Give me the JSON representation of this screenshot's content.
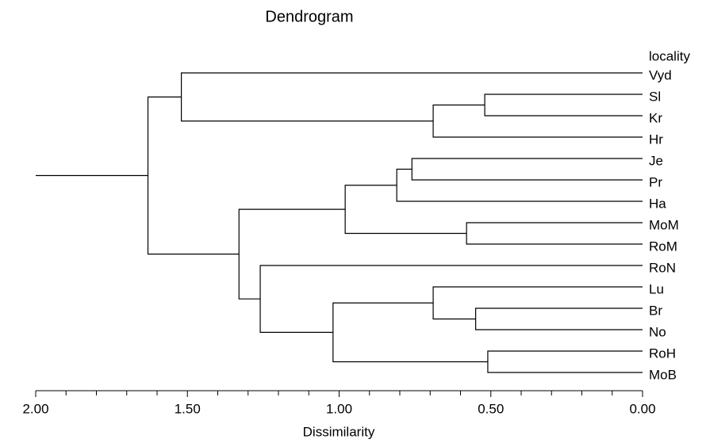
{
  "chart_data": {
    "type": "dendrogram",
    "title": "Dendrogram",
    "xlabel": "Dissimilarity",
    "leaf_header": "locality",
    "labels": [
      "Vyd",
      "Sl",
      "Kr",
      "Hr",
      "Je",
      "Pr",
      "Ha",
      "MoM",
      "RoM",
      "RoN",
      "Lu",
      "Br",
      "No",
      "RoH",
      "MoB"
    ],
    "merges": [
      {
        "children": [
          1,
          2
        ],
        "height": 0.52
      },
      {
        "children": [
          15,
          3
        ],
        "height": 0.69
      },
      {
        "children": [
          0,
          16
        ],
        "height": 1.52
      },
      {
        "children": [
          4,
          5
        ],
        "height": 0.76
      },
      {
        "children": [
          18,
          6
        ],
        "height": 0.81
      },
      {
        "children": [
          7,
          8
        ],
        "height": 0.58
      },
      {
        "children": [
          19,
          20
        ],
        "height": 0.98
      },
      {
        "children": [
          11,
          12
        ],
        "height": 0.55
      },
      {
        "children": [
          10,
          22
        ],
        "height": 0.69
      },
      {
        "children": [
          13,
          14
        ],
        "height": 0.51
      },
      {
        "children": [
          23,
          24
        ],
        "height": 1.02
      },
      {
        "children": [
          9,
          25
        ],
        "height": 1.26
      },
      {
        "children": [
          21,
          26
        ],
        "height": 1.33
      },
      {
        "children": [
          17,
          27
        ],
        "height": 1.63
      }
    ],
    "xlim": [
      2,
      0
    ],
    "xticks": [
      {
        "value": 2,
        "label": "2.00"
      },
      {
        "value": 1.5,
        "label": "1.50"
      },
      {
        "value": 1,
        "label": "1.00"
      },
      {
        "value": 0.5,
        "label": "0.50"
      },
      {
        "value": 0,
        "label": "0.00"
      }
    ],
    "xminorticks": [
      1.9,
      1.8,
      1.7,
      1.6,
      1.4,
      1.3,
      1.2,
      1.1,
      0.9,
      0.8,
      0.7,
      0.6,
      0.4,
      0.3,
      0.2,
      0.1
    ],
    "color": "#000000"
  }
}
